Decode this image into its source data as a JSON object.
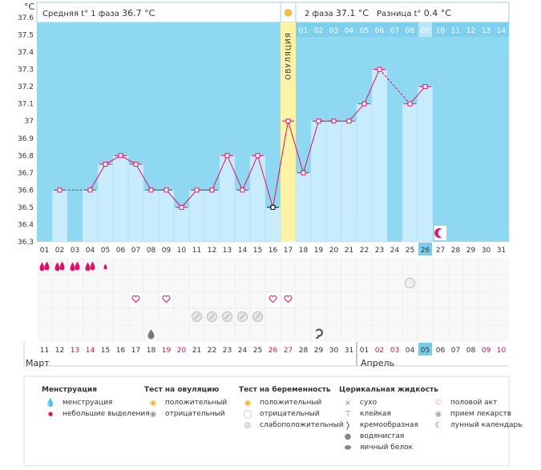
{
  "header": {
    "unit": "°C",
    "phase1_label": "Средняя t° 1 фаза",
    "phase1_value": "36.7 °C",
    "phase2_label": "2 фаза",
    "phase2_value": "37.1 °C",
    "diff_label": "Разница t°",
    "diff_value": "0.4 °C",
    "ovulation_label": "ОВУЛЯЦИЯ"
  },
  "chart_data": {
    "type": "line",
    "y_ticks": [
      "37.6",
      "37.5",
      "37.4",
      "37.3",
      "37.2",
      "37.1",
      "37",
      "36.9",
      "36.8",
      "36.7",
      "36.6",
      "36.5",
      "36.4",
      "36.3"
    ],
    "ylim": [
      36.3,
      37.6
    ],
    "cycle_days": [
      "01",
      "02",
      "03",
      "04",
      "05",
      "06",
      "07",
      "08",
      "09",
      "10",
      "11",
      "12",
      "13",
      "14",
      "15",
      "16",
      "17",
      "18",
      "19",
      "20",
      "21",
      "22",
      "23",
      "24",
      "25",
      "26",
      "27",
      "28",
      "29",
      "30",
      "31"
    ],
    "phase2_days": [
      "01",
      "02",
      "03",
      "04",
      "05",
      "06",
      "07",
      "08",
      "09",
      "10",
      "11",
      "12",
      "13",
      "14"
    ],
    "current_cycle_day": "26",
    "ovulation_day": 17,
    "series": [
      {
        "values": [
          null,
          36.6,
          null,
          36.6,
          36.75,
          36.8,
          36.75,
          36.6,
          36.6,
          36.5,
          36.6,
          36.6,
          36.8,
          36.6,
          36.8,
          36.5,
          37.0,
          36.7,
          37.0,
          37.0,
          37.0,
          37.1,
          37.3,
          null,
          37.1,
          37.2,
          null,
          null,
          null,
          null,
          null
        ],
        "connect_gaps_dashed": true
      }
    ],
    "dates": [
      "11",
      "12",
      "13",
      "14",
      "15",
      "16",
      "17",
      "18",
      "19",
      "20",
      "21",
      "22",
      "23",
      "24",
      "25",
      "26",
      "27",
      "28",
      "29",
      "30",
      "31",
      "01",
      "02",
      "03",
      "04",
      "05",
      "06",
      "07",
      "08",
      "09",
      "10"
    ],
    "red_dates": [
      2,
      3,
      8,
      9,
      15,
      16,
      22,
      23,
      29,
      30
    ],
    "highlight_date_index": 25,
    "months": [
      "Март",
      "Апрель"
    ],
    "moon_day": 27
  },
  "symbols": {
    "menstruation": [
      1,
      2,
      3,
      4
    ],
    "light_spotting": [
      5
    ],
    "pregnancy_test_negative": [
      25
    ],
    "intercourse": [
      7,
      9,
      16,
      17
    ],
    "medication": [
      11,
      12,
      13,
      14,
      15
    ],
    "watery": [
      8
    ],
    "creamy": [
      19
    ]
  },
  "legend": {
    "menstruation": {
      "title": "Менструация",
      "items": [
        "менструация",
        "небольшие выделения"
      ]
    },
    "ovulation_test": {
      "title": "Тест на овуляцию",
      "items": [
        "положительный",
        "отрицательный"
      ]
    },
    "pregnancy_test": {
      "title": "Тест на беременность",
      "items": [
        "положительный",
        "отрицательный",
        "слабоположительный"
      ]
    },
    "cervical": {
      "title": "Церикальная жидкость",
      "items": [
        "сухо",
        "клейкая",
        "кремообразная",
        "водянистая",
        "яичный белок"
      ]
    },
    "other": {
      "items": [
        "половой акт",
        "прием лекарств",
        "лунный календарь"
      ]
    }
  },
  "colors": {
    "sky": "#8fd8f2",
    "bar": "#c8ecfb",
    "line": "#e0106a",
    "ovulation": "#fdf3a6",
    "red_text": "#d0104a",
    "highlight": "#7ccbe9"
  }
}
